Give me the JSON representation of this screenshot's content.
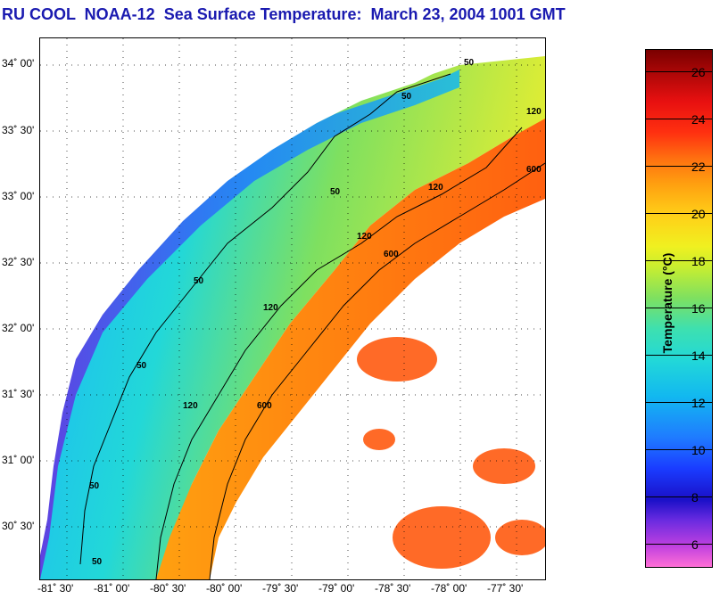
{
  "header": {
    "title": "RU COOL  NOAA-12  Sea Surface Temperature:  March 23, 2004 1001 GMT"
  },
  "map": {
    "lat_labels": [
      "34˚ 00'",
      "33˚ 30'",
      "33˚ 00'",
      "32˚ 30'",
      "32˚ 00'",
      "31˚ 30'",
      "31˚ 00'",
      "30˚ 30'"
    ],
    "lon_labels": [
      "-81˚ 30'",
      "-81˚ 00'",
      "-80˚ 30'",
      "-80˚ 00'",
      "-79˚ 30'",
      "-79˚ 00'",
      "-78˚ 30'",
      "-78˚ 00'",
      "-77˚ 30'"
    ],
    "isobath_labels": [
      "50",
      "50",
      "50",
      "50",
      "50",
      "50",
      "50",
      "120",
      "120",
      "120",
      "120",
      "120",
      "600",
      "600",
      "600"
    ]
  },
  "colorbar": {
    "title": "Temperature (°C)",
    "ticks": [
      "26",
      "24",
      "22",
      "20",
      "18",
      "16",
      "14",
      "12",
      "10",
      "8",
      "6"
    ],
    "colors": {
      "cold": "#ff6fd6",
      "cool": "#1a10c8",
      "mid": "#22d8d8",
      "warm": "#ffd018",
      "hot": "#7a0000"
    }
  }
}
